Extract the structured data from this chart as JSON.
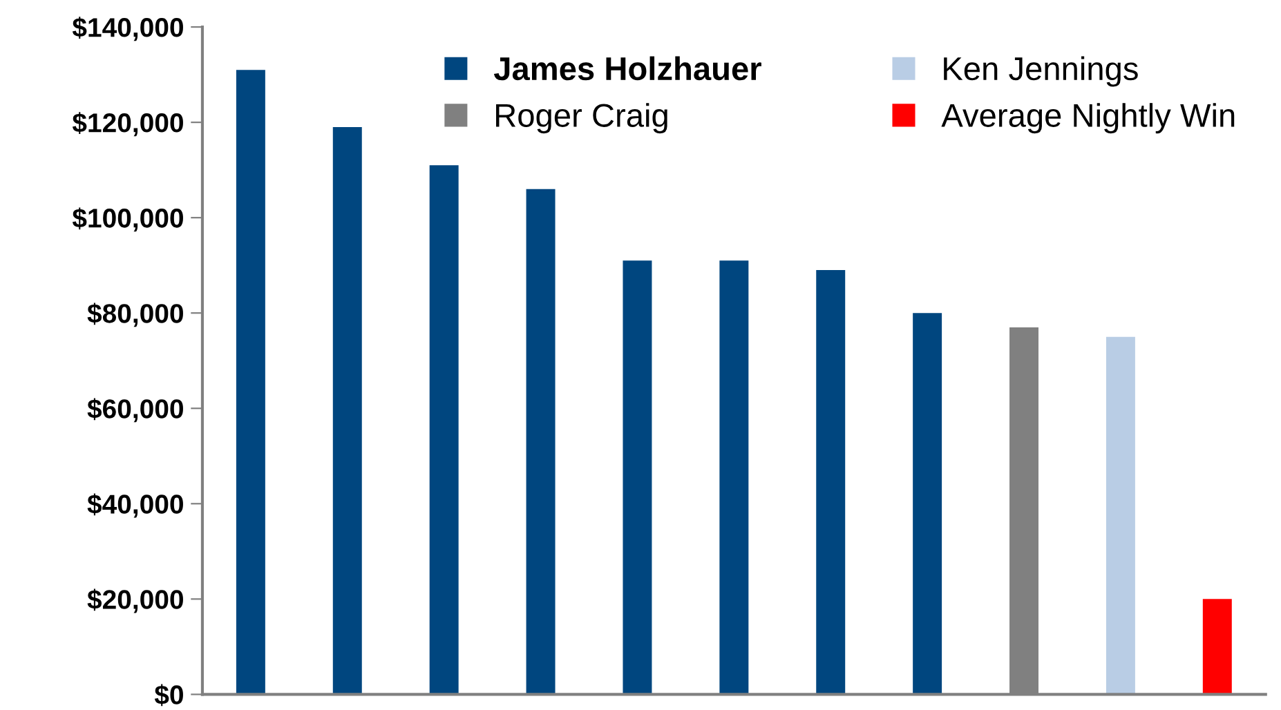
{
  "chart_data": {
    "type": "bar",
    "categories": [
      null,
      null,
      null,
      null,
      null,
      null,
      null,
      null,
      null,
      null,
      null
    ],
    "series": [
      {
        "name": "James Holzhauer",
        "color": "#00467f",
        "values": [
          131000,
          119000,
          111000,
          106000,
          91000,
          91000,
          89000,
          80000,
          null,
          null,
          null
        ]
      },
      {
        "name": "Roger Craig",
        "color": "#808080",
        "values": [
          null,
          null,
          null,
          null,
          null,
          null,
          null,
          null,
          77000,
          null,
          null
        ]
      },
      {
        "name": "Ken Jennings",
        "color": "#b9cde5",
        "values": [
          null,
          null,
          null,
          null,
          null,
          null,
          null,
          null,
          null,
          75000,
          null
        ]
      },
      {
        "name": "Average Nightly Win",
        "color": "#ff0000",
        "values": [
          null,
          null,
          null,
          null,
          null,
          null,
          null,
          null,
          null,
          null,
          20000
        ]
      }
    ],
    "ylim": [
      0,
      140000
    ],
    "yticks": [
      {
        "value": 0,
        "label": "$0"
      },
      {
        "value": 20000,
        "label": "$20,000"
      },
      {
        "value": 40000,
        "label": "$40,000"
      },
      {
        "value": 60000,
        "label": "$60,000"
      },
      {
        "value": 80000,
        "label": "$80,000"
      },
      {
        "value": 100000,
        "label": "$100,000"
      },
      {
        "value": 120000,
        "label": "$120,000"
      },
      {
        "value": 140000,
        "label": "$140,000"
      }
    ],
    "tick_labels": "y",
    "grid": false,
    "legend": "top right"
  }
}
